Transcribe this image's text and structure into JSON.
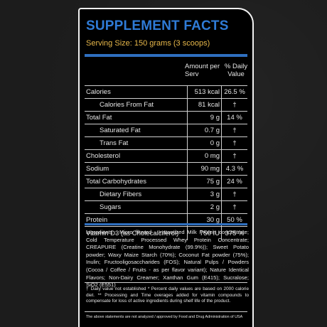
{
  "label": {
    "title": "SUPPLEMENT FACTS",
    "serving_size": "Serving Size: 150 grams (3 scoops)",
    "header_amount": "Amount per Serv",
    "header_dv": "% Daily Value",
    "rows": [
      {
        "name": "Calories",
        "amount": "513 kcal",
        "dv": "26.5 %"
      },
      {
        "name": "Calories From Fat",
        "amount": "81 kcal",
        "dv": "†"
      },
      {
        "name": "Total Fat",
        "amount": "9 g",
        "dv": "14 %"
      },
      {
        "name": "Saturated Fat",
        "amount": "0.7 g",
        "dv": "†"
      },
      {
        "name": "Trans Fat",
        "amount": "0 g",
        "dv": "†"
      },
      {
        "name": "Cholesterol",
        "amount": "0 mg",
        "dv": "†"
      },
      {
        "name": "Sodium",
        "amount": "90 mg",
        "dv": "4.3 %"
      },
      {
        "name": "Total Carbohydrates",
        "amount": "75 g",
        "dv": "24 %"
      },
      {
        "name": "Dietary Fibers",
        "amount": "3 g",
        "dv": "†"
      },
      {
        "name": "Sugars",
        "amount": "2 g",
        "dv": "†"
      },
      {
        "name": "Protein",
        "amount": "30 g",
        "dv": "50 %"
      },
      {
        "name": "Vitamin D3 (as Cholecalciferol)",
        "amount": "750 IU",
        "dv": "375 %"
      }
    ],
    "ingredients": "Ingredients : Micro filtered - Instantized Milk Protein concentrate; Cold Temperature Processed Whey Protein Concentrate; CREAPURE (Creatine Monohydrate (99.9%)); Sweet Potato powder; Waxy Maize Starch (70%); Coconut Fat powder (75%); Inulin; Fructooligosaccharides (FOS); Natural Pulps / Powders (Cocoa / Coffee / Fruits - as per flavor variant); Nature Identical Flavors; Non-Dairy Creamer; Xanthan Gum (E415); Sucralose; SiO2 (E551)",
    "footnote": "† Daily value not established * Percent daily values are based on 2000 calorie diet. ** Processing and Time overages added for vitamin compounds to compensate for loss of active ingredients during shelf life of the product.",
    "disclaimer": "The above statements are not analyzed / approved by Food and Drug Administration of USA"
  }
}
